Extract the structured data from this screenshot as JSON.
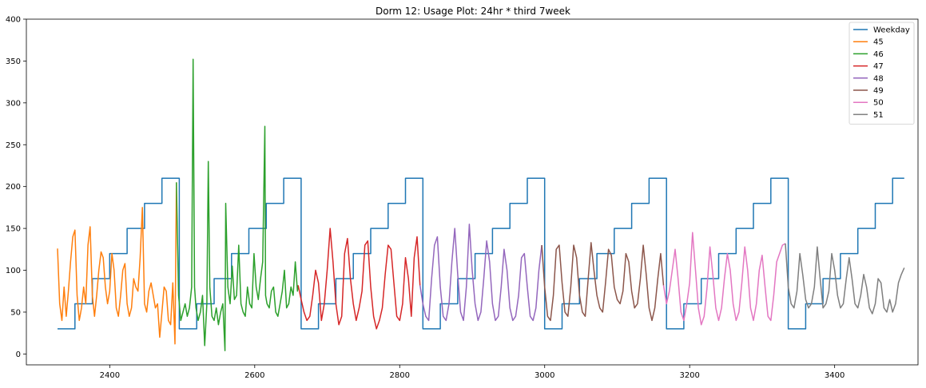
{
  "chart_data": {
    "type": "line",
    "title": "Dorm 12: Usage Plot: 24hr * third 7week",
    "xlabel": "",
    "ylabel": "",
    "xlim": [
      2285,
      3515
    ],
    "ylim": [
      -13,
      400
    ],
    "xticks": [
      2400,
      2600,
      2800,
      3000,
      3200,
      3400
    ],
    "yticks": [
      0,
      50,
      100,
      150,
      200,
      250,
      300,
      350,
      400
    ],
    "grid": false,
    "legend_position": "top-right",
    "series": [
      {
        "name": "Weekday",
        "color": "#1f77b4",
        "step": true,
        "levels": [
          30,
          60,
          90,
          120,
          150,
          180,
          210
        ],
        "start": 2328,
        "period": 168,
        "level_width": 24,
        "end": 3496
      },
      {
        "name": "45",
        "color": "#ff7f0e",
        "x": [
          2328,
          2331,
          2334,
          2337,
          2340,
          2343,
          2346,
          2349,
          2352,
          2355,
          2358,
          2361,
          2364,
          2367,
          2370,
          2373,
          2376,
          2379,
          2382,
          2385,
          2388,
          2391,
          2394,
          2397,
          2400,
          2403,
          2406,
          2409,
          2412,
          2415,
          2418,
          2421,
          2424,
          2427,
          2430,
          2433,
          2436,
          2439,
          2442,
          2445,
          2448,
          2451,
          2454,
          2457,
          2460,
          2463,
          2466,
          2469,
          2472,
          2475,
          2478,
          2481,
          2484,
          2487,
          2490,
          2492
        ],
        "y": [
          126,
          60,
          40,
          80,
          45,
          75,
          110,
          140,
          148,
          70,
          40,
          55,
          80,
          60,
          130,
          152,
          70,
          45,
          70,
          100,
          122,
          115,
          80,
          60,
          75,
          120,
          100,
          55,
          45,
          70,
          100,
          108,
          60,
          45,
          55,
          90,
          80,
          75,
          115,
          175,
          60,
          50,
          75,
          85,
          70,
          55,
          60,
          20,
          50,
          80,
          75,
          40,
          35,
          85,
          12,
          205
        ]
      },
      {
        "name": "46",
        "color": "#2ca02c",
        "x": [
          2492,
          2495,
          2498,
          2501,
          2504,
          2507,
          2510,
          2513,
          2515,
          2517,
          2519,
          2522,
          2525,
          2528,
          2531,
          2534,
          2536,
          2538,
          2541,
          2544,
          2547,
          2550,
          2553,
          2556,
          2559,
          2560,
          2563,
          2566,
          2569,
          2572,
          2575,
          2578,
          2581,
          2584,
          2587,
          2590,
          2593,
          2596,
          2599,
          2602,
          2605,
          2608,
          2611,
          2614,
          2615,
          2617,
          2620,
          2623,
          2626,
          2629,
          2632,
          2635,
          2638,
          2641,
          2644,
          2647,
          2650,
          2653,
          2656,
          2659,
          2660
        ],
        "y": [
          205,
          70,
          40,
          50,
          60,
          45,
          55,
          80,
          352,
          80,
          55,
          40,
          50,
          70,
          10,
          60,
          230,
          80,
          45,
          40,
          55,
          35,
          50,
          60,
          4,
          180,
          80,
          60,
          105,
          65,
          70,
          130,
          60,
          50,
          45,
          80,
          60,
          55,
          120,
          80,
          65,
          90,
          110,
          272,
          70,
          60,
          55,
          75,
          80,
          50,
          45,
          60,
          75,
          100,
          55,
          60,
          80,
          70,
          110,
          75,
          82
        ]
      },
      {
        "name": "47",
        "color": "#d62728",
        "x": [
          2660,
          2664,
          2668,
          2672,
          2676,
          2680,
          2684,
          2688,
          2692,
          2696,
          2700,
          2704,
          2708,
          2712,
          2716,
          2720,
          2724,
          2728,
          2732,
          2736,
          2740,
          2744,
          2748,
          2752,
          2756,
          2760,
          2764,
          2768,
          2772,
          2776,
          2780,
          2784,
          2788,
          2792,
          2796,
          2800,
          2804,
          2808,
          2812,
          2816,
          2820,
          2824,
          2828
        ],
        "y": [
          82,
          65,
          50,
          40,
          45,
          70,
          100,
          85,
          40,
          60,
          100,
          150,
          110,
          60,
          35,
          45,
          120,
          138,
          90,
          60,
          40,
          55,
          75,
          130,
          135,
          80,
          45,
          30,
          40,
          55,
          95,
          130,
          125,
          85,
          45,
          40,
          60,
          115,
          90,
          45,
          115,
          140,
          82
        ]
      },
      {
        "name": "48",
        "color": "#9467bd",
        "x": [
          2828,
          2832,
          2836,
          2840,
          2844,
          2848,
          2852,
          2856,
          2860,
          2864,
          2868,
          2872,
          2876,
          2880,
          2884,
          2888,
          2892,
          2896,
          2900,
          2904,
          2908,
          2912,
          2916,
          2920,
          2924,
          2928,
          2932,
          2936,
          2940,
          2944,
          2948,
          2952,
          2956,
          2960,
          2964,
          2968,
          2972,
          2976,
          2980,
          2984,
          2988,
          2992,
          2996
        ],
        "y": [
          82,
          60,
          45,
          40,
          90,
          130,
          140,
          80,
          45,
          40,
          60,
          110,
          150,
          95,
          50,
          40,
          80,
          155,
          100,
          60,
          40,
          50,
          90,
          135,
          110,
          60,
          40,
          45,
          80,
          125,
          100,
          55,
          40,
          45,
          70,
          115,
          120,
          80,
          45,
          40,
          55,
          100,
          130
        ]
      },
      {
        "name": "49",
        "color": "#8c564b",
        "x": [
          2996,
          3000,
          3004,
          3008,
          3012,
          3016,
          3020,
          3024,
          3028,
          3032,
          3036,
          3040,
          3044,
          3048,
          3052,
          3056,
          3060,
          3064,
          3068,
          3072,
          3076,
          3080,
          3084,
          3088,
          3092,
          3096,
          3100,
          3104,
          3108,
          3112,
          3116,
          3120,
          3124,
          3128,
          3132,
          3136,
          3140,
          3144,
          3148,
          3152,
          3156,
          3160,
          3164
        ],
        "y": [
          130,
          80,
          45,
          40,
          70,
          125,
          130,
          85,
          50,
          45,
          80,
          130,
          115,
          70,
          50,
          45,
          90,
          133,
          100,
          70,
          55,
          50,
          85,
          125,
          118,
          80,
          65,
          60,
          75,
          120,
          110,
          75,
          55,
          60,
          90,
          130,
          95,
          55,
          40,
          55,
          90,
          120,
          82
        ]
      },
      {
        "name": "50",
        "color": "#e377c2",
        "x": [
          3164,
          3168,
          3172,
          3176,
          3180,
          3184,
          3188,
          3192,
          3196,
          3200,
          3204,
          3208,
          3212,
          3216,
          3220,
          3224,
          3228,
          3232,
          3236,
          3240,
          3244,
          3248,
          3252,
          3256,
          3260,
          3264,
          3268,
          3272,
          3276,
          3280,
          3284,
          3288,
          3292,
          3296,
          3300,
          3304,
          3308,
          3312,
          3316,
          3320,
          3324,
          3328,
          3332
        ],
        "y": [
          82,
          60,
          75,
          100,
          125,
          90,
          50,
          40,
          60,
          85,
          145,
          100,
          55,
          35,
          45,
          80,
          128,
          95,
          55,
          40,
          55,
          90,
          120,
          100,
          60,
          40,
          50,
          85,
          128,
          100,
          55,
          40,
          60,
          100,
          118,
          80,
          45,
          40,
          70,
          110,
          120,
          130,
          132
        ]
      },
      {
        "name": "51",
        "color": "#7f7f7f",
        "x": [
          3332,
          3336,
          3340,
          3344,
          3348,
          3352,
          3356,
          3360,
          3364,
          3368,
          3372,
          3376,
          3380,
          3384,
          3388,
          3392,
          3396,
          3400,
          3404,
          3408,
          3412,
          3416,
          3420,
          3424,
          3428,
          3432,
          3436,
          3440,
          3444,
          3448,
          3452,
          3456,
          3460,
          3464,
          3468,
          3472,
          3476,
          3480,
          3484,
          3488,
          3492,
          3496
        ],
        "y": [
          132,
          80,
          60,
          55,
          75,
          120,
          95,
          65,
          55,
          60,
          80,
          128,
          90,
          55,
          60,
          75,
          120,
          100,
          70,
          55,
          60,
          90,
          115,
          90,
          60,
          55,
          70,
          95,
          80,
          55,
          48,
          60,
          90,
          85,
          55,
          50,
          65,
          50,
          60,
          85,
          95,
          103
        ]
      }
    ]
  }
}
